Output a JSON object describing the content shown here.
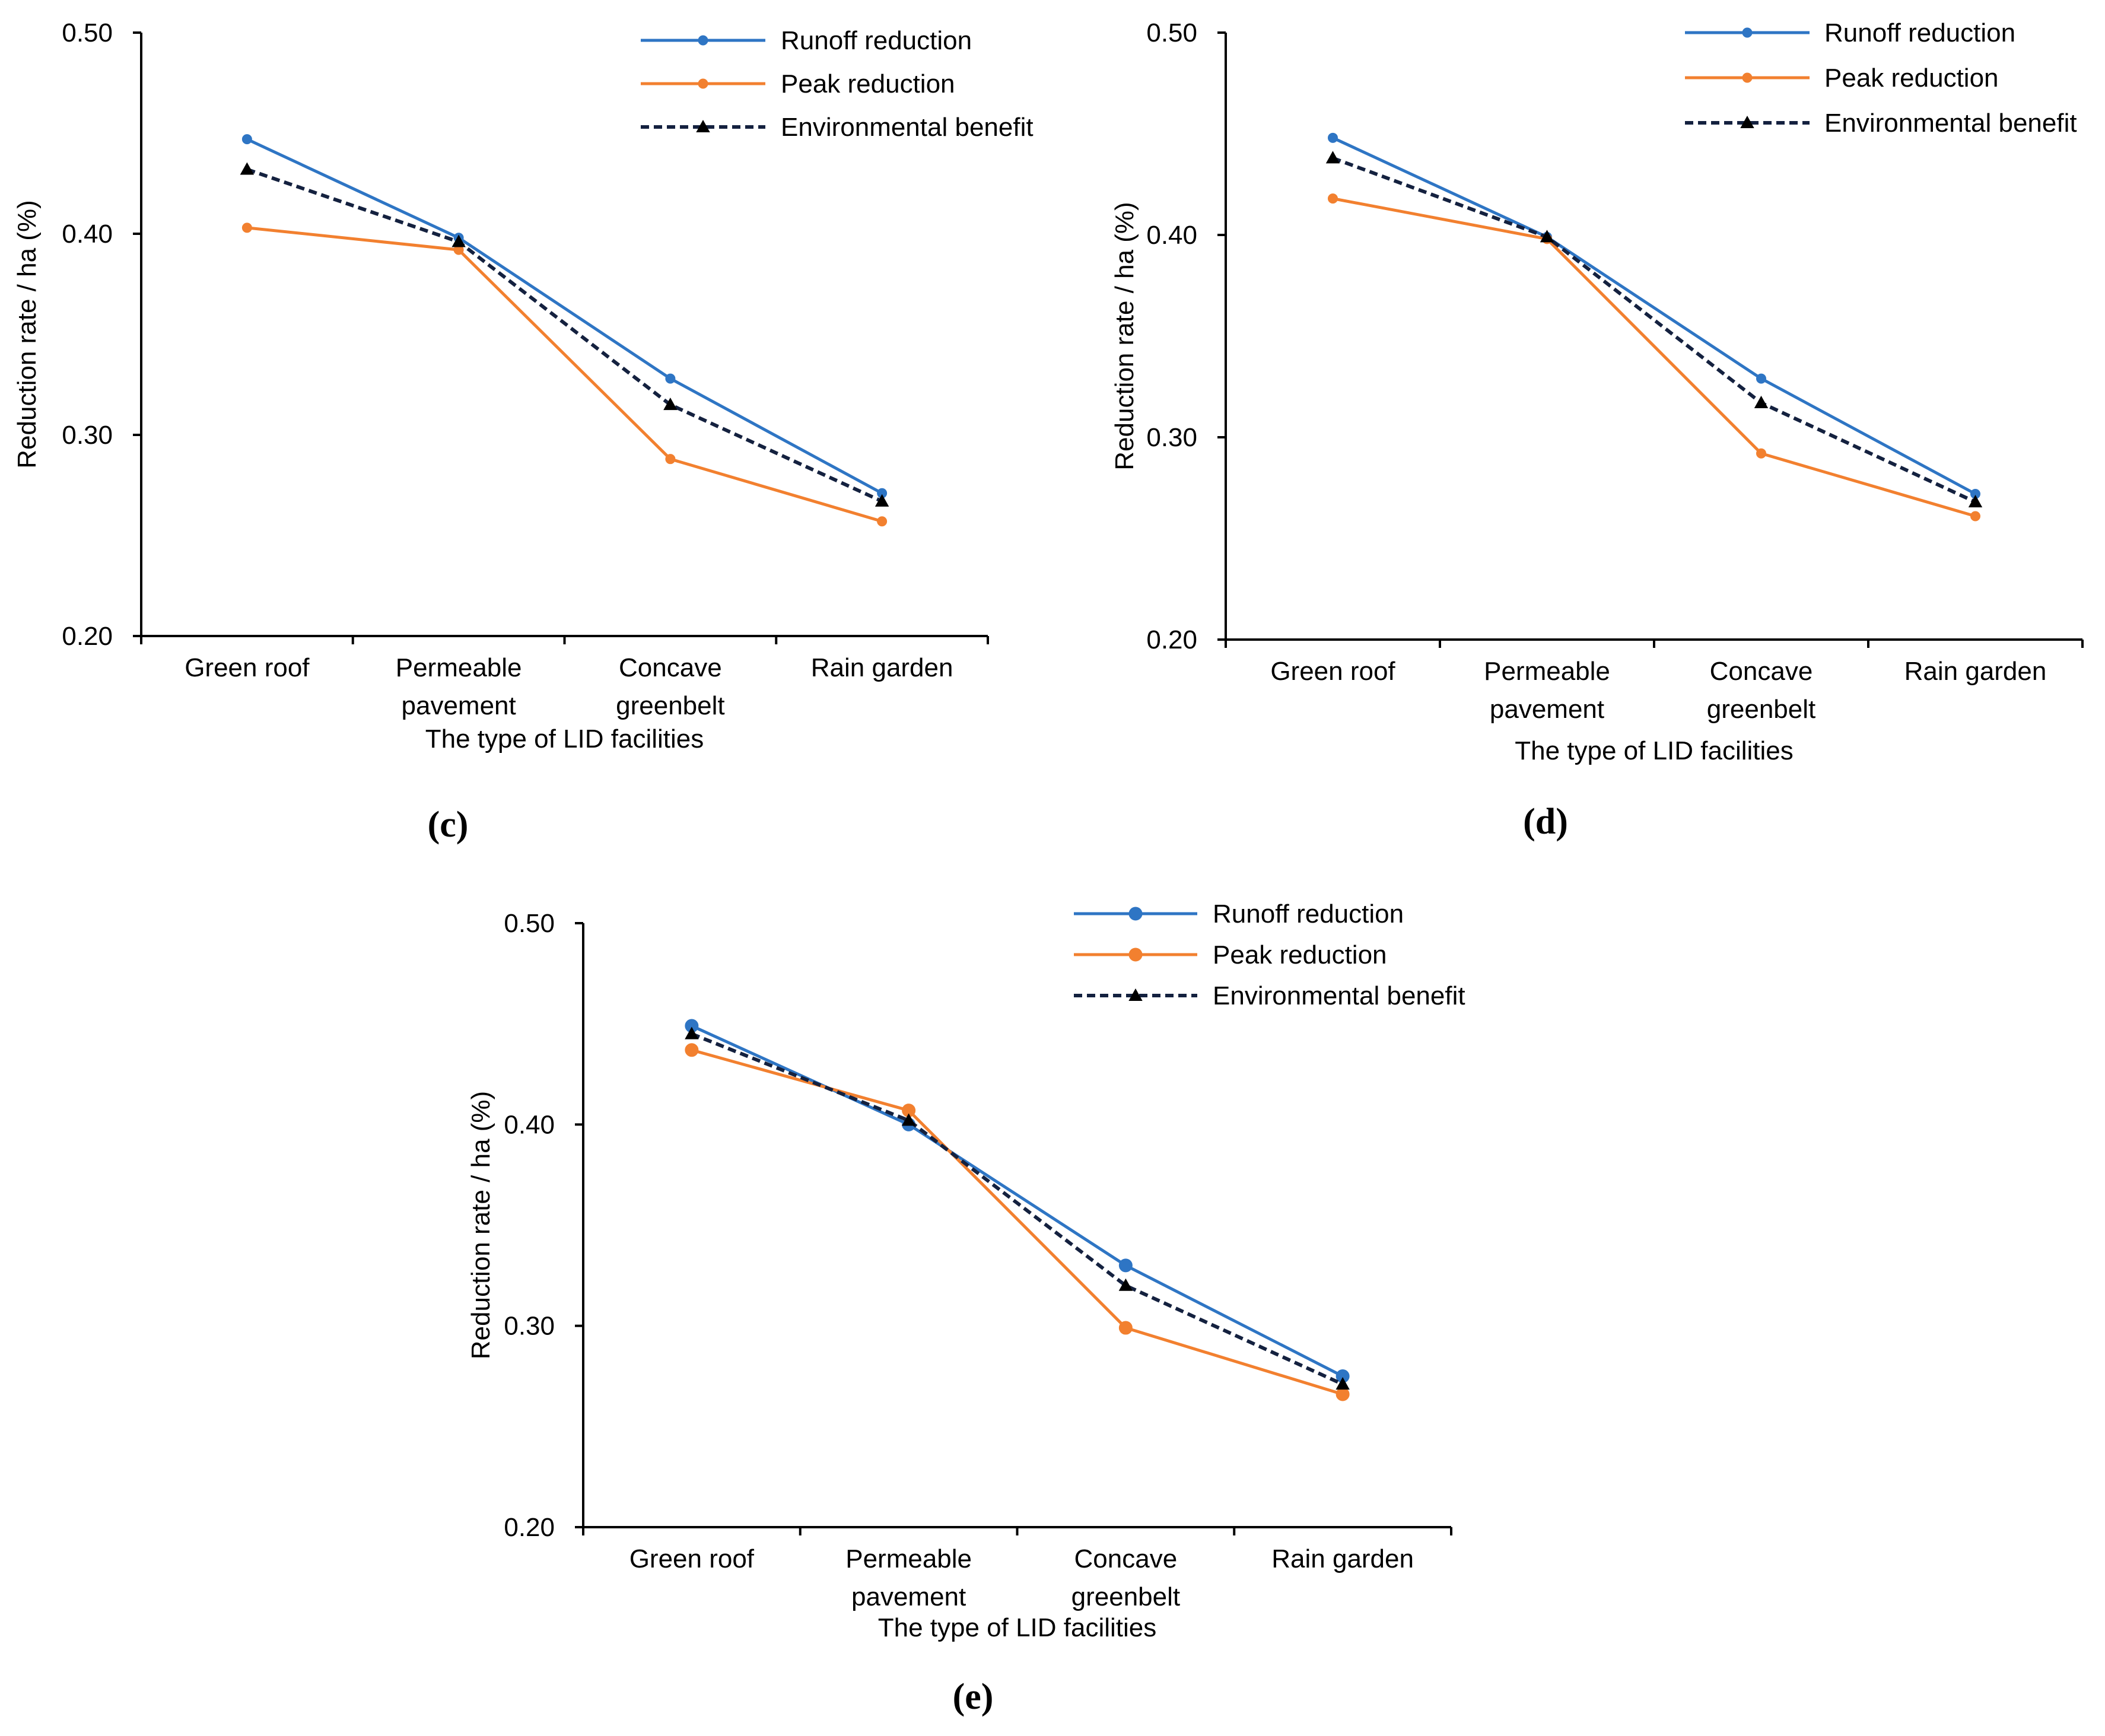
{
  "figure": {
    "panels": [
      {
        "label": "(c)",
        "chart_data": {
          "type": "line",
          "title": "",
          "xlabel": "The type of LID facilities",
          "ylabel": "Reduction rate / ha (%)",
          "categories": [
            "Green roof",
            "Permeable pavement",
            "Concave greenbelt",
            "Rain garden"
          ],
          "category_lines": [
            [
              "Green roof"
            ],
            [
              "Permeable",
              "pavement"
            ],
            [
              "Concave",
              "greenbelt"
            ],
            [
              "Rain garden"
            ]
          ],
          "ylim": [
            0.2,
            0.5
          ],
          "yticks": [
            0.2,
            0.3,
            0.4,
            0.5
          ],
          "ytick_labels": [
            "0.20",
            "0.30",
            "0.40",
            "0.50"
          ],
          "legend_position": "top-right",
          "series": [
            {
              "name": "Runoff reduction",
              "values": [
                0.447,
                0.398,
                0.328,
                0.271
              ],
              "color": "#2E75C4",
              "dash": "solid",
              "marker": "circle",
              "marker_size": "small"
            },
            {
              "name": "Peak reduction",
              "values": [
                0.403,
                0.392,
                0.288,
                0.257
              ],
              "color": "#F2802F",
              "dash": "solid",
              "marker": "circle",
              "marker_size": "small"
            },
            {
              "name": "Environmental benefit",
              "values": [
                0.432,
                0.396,
                0.315,
                0.267
              ],
              "color": "#14213F",
              "dash": "dashed",
              "marker": "triangle",
              "marker_size": "small"
            }
          ]
        }
      },
      {
        "label": "(d)",
        "chart_data": {
          "type": "line",
          "title": "",
          "xlabel": "The type of LID facilities",
          "ylabel": "Reduction rate / ha (%)",
          "categories": [
            "Green roof",
            "Permeable pavement",
            "Concave greenbelt",
            "Rain garden"
          ],
          "category_lines": [
            [
              "Green roof"
            ],
            [
              "Permeable",
              "pavement"
            ],
            [
              "Concave",
              "greenbelt"
            ],
            [
              "Rain garden"
            ]
          ],
          "ylim": [
            0.2,
            0.5
          ],
          "yticks": [
            0.2,
            0.3,
            0.4,
            0.5
          ],
          "ytick_labels": [
            "0.20",
            "0.30",
            "0.40",
            "0.50"
          ],
          "legend_position": "top-right",
          "series": [
            {
              "name": "Runoff reduction",
              "values": [
                0.448,
                0.399,
                0.329,
                0.272
              ],
              "color": "#2E75C4",
              "dash": "solid",
              "marker": "circle",
              "marker_size": "small"
            },
            {
              "name": "Peak reduction",
              "values": [
                0.418,
                0.398,
                0.292,
                0.261
              ],
              "color": "#F2802F",
              "dash": "solid",
              "marker": "circle",
              "marker_size": "small"
            },
            {
              "name": "Environmental benefit",
              "values": [
                0.438,
                0.399,
                0.317,
                0.268
              ],
              "color": "#14213F",
              "dash": "dashed",
              "marker": "triangle",
              "marker_size": "small"
            }
          ]
        }
      },
      {
        "label": "(e)",
        "chart_data": {
          "type": "line",
          "title": "",
          "xlabel": "The type of LID facilities",
          "ylabel": "Reduction rate / ha (%)",
          "categories": [
            "Green roof",
            "Permeable pavement",
            "Concave greenbelt",
            "Rain garden"
          ],
          "category_lines": [
            [
              "Green roof"
            ],
            [
              "Permeable",
              "pavement"
            ],
            [
              "Concave",
              "greenbelt"
            ],
            [
              "Rain garden"
            ]
          ],
          "ylim": [
            0.2,
            0.5
          ],
          "yticks": [
            0.2,
            0.3,
            0.4,
            0.5
          ],
          "ytick_labels": [
            "0.20",
            "0.30",
            "0.40",
            "0.50"
          ],
          "legend_position": "top-right",
          "series": [
            {
              "name": "Runoff reduction",
              "values": [
                0.449,
                0.4,
                0.33,
                0.275
              ],
              "color": "#2E75C4",
              "dash": "solid",
              "marker": "circle",
              "marker_size": "large"
            },
            {
              "name": "Peak reduction",
              "values": [
                0.437,
                0.407,
                0.299,
                0.266
              ],
              "color": "#F2802F",
              "dash": "solid",
              "marker": "circle",
              "marker_size": "large"
            },
            {
              "name": "Environmental benefit",
              "values": [
                0.445,
                0.402,
                0.32,
                0.271
              ],
              "color": "#14213F",
              "dash": "dashed",
              "marker": "triangle",
              "marker_size": "small"
            }
          ]
        }
      }
    ]
  }
}
